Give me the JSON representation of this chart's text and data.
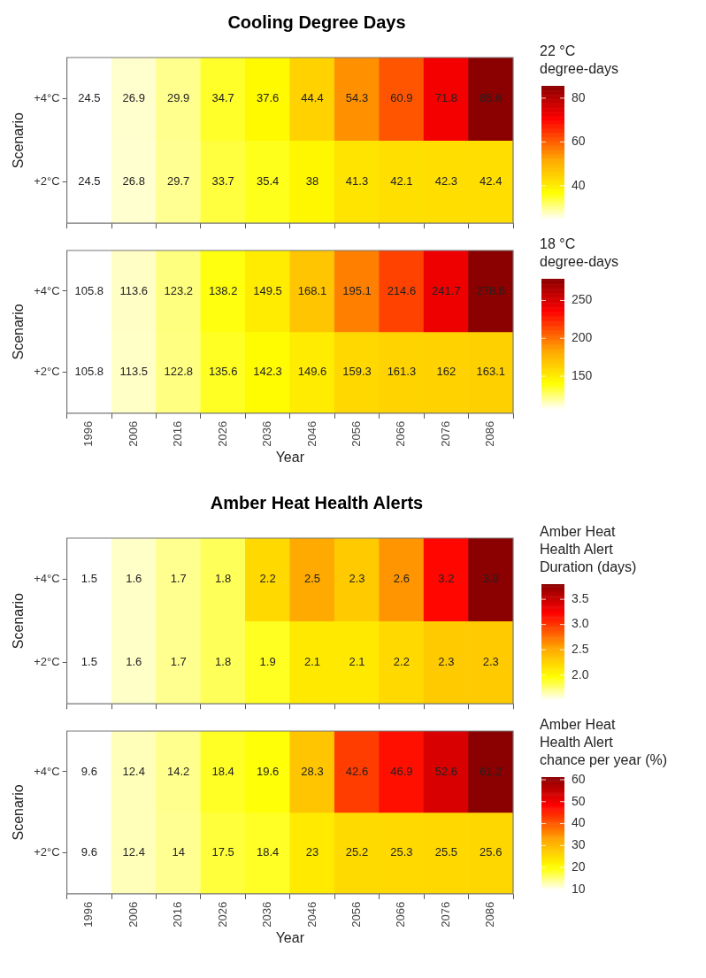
{
  "chart_data": [
    {
      "type": "heatmap",
      "title": "Cooling Degree Days",
      "ylabel": "Scenario",
      "categories": [
        "1996",
        "2006",
        "2016",
        "2026",
        "2036",
        "2046",
        "2056",
        "2066",
        "2076",
        "2086"
      ],
      "y_categories": [
        "+4°C",
        "+2°C"
      ],
      "cells": [
        [
          24.5,
          26.9,
          29.9,
          34.7,
          37.6,
          44.4,
          54.3,
          60.9,
          71.8,
          85.6
        ],
        [
          24.5,
          26.8,
          29.7,
          33.7,
          35.4,
          38,
          41.3,
          42.1,
          42.3,
          42.4
        ]
      ],
      "clim": [
        24.5,
        85.6
      ],
      "cticks": [
        40,
        60,
        80
      ],
      "clabel": "22 °C\ndegree-days",
      "data_labels": true,
      "tick_labels": "y"
    },
    {
      "type": "heatmap",
      "ylabel": "Scenario",
      "xlabel": "Year",
      "categories": [
        "1996",
        "2006",
        "2016",
        "2026",
        "2036",
        "2046",
        "2056",
        "2066",
        "2076",
        "2086"
      ],
      "y_categories": [
        "+4°C",
        "+2°C"
      ],
      "cells": [
        [
          105.8,
          113.6,
          123.2,
          138.2,
          149.5,
          168.1,
          195.1,
          214.6,
          241.7,
          278.6
        ],
        [
          105.8,
          113.5,
          122.8,
          135.6,
          142.3,
          149.6,
          159.3,
          161.3,
          162,
          163.1
        ]
      ],
      "clim": [
        105.8,
        278.6
      ],
      "cticks": [
        150,
        200,
        250
      ],
      "clabel": "18 °C\ndegree-days",
      "data_labels": true
    },
    {
      "type": "heatmap",
      "title": "Amber Heat Health Alerts",
      "ylabel": "Scenario",
      "categories": [
        "1996",
        "2006",
        "2016",
        "2026",
        "2036",
        "2046",
        "2056",
        "2066",
        "2076",
        "2086"
      ],
      "y_categories": [
        "+4°C",
        "+2°C"
      ],
      "cells": [
        [
          1.5,
          1.6,
          1.7,
          1.8,
          2.2,
          2.5,
          2.3,
          2.6,
          3.2,
          3.8
        ],
        [
          1.5,
          1.6,
          1.7,
          1.8,
          1.9,
          2.1,
          2.1,
          2.2,
          2.3,
          2.3
        ]
      ],
      "clim": [
        1.5,
        3.8
      ],
      "cticks": [
        {
          "value": 2,
          "label": "2.0"
        },
        {
          "value": 2.5,
          "label": "2.5"
        },
        {
          "value": 3,
          "label": "3.0"
        },
        {
          "value": 3.5,
          "label": "3.5"
        }
      ],
      "clabel": "Amber Heat\nHealth Alert\nDuration (days)",
      "data_labels": true,
      "tick_labels": "y"
    },
    {
      "type": "heatmap",
      "ylabel": "Scenario",
      "xlabel": "Year",
      "categories": [
        "1996",
        "2006",
        "2016",
        "2026",
        "2036",
        "2046",
        "2056",
        "2066",
        "2076",
        "2086"
      ],
      "y_categories": [
        "+4°C",
        "+2°C"
      ],
      "cells": [
        [
          9.6,
          12.4,
          14.2,
          18.4,
          19.6,
          28.3,
          42.6,
          46.9,
          52.6,
          61.2
        ],
        [
          9.6,
          12.4,
          14,
          17.5,
          18.4,
          23,
          25.2,
          25.3,
          25.5,
          25.6
        ]
      ],
      "clim": [
        9.6,
        61.2
      ],
      "cticks": [
        10,
        20,
        30,
        40,
        50,
        60
      ],
      "clabel": "Amber Heat\nHealth Alert\nchance per year (%)",
      "data_labels": true
    }
  ]
}
